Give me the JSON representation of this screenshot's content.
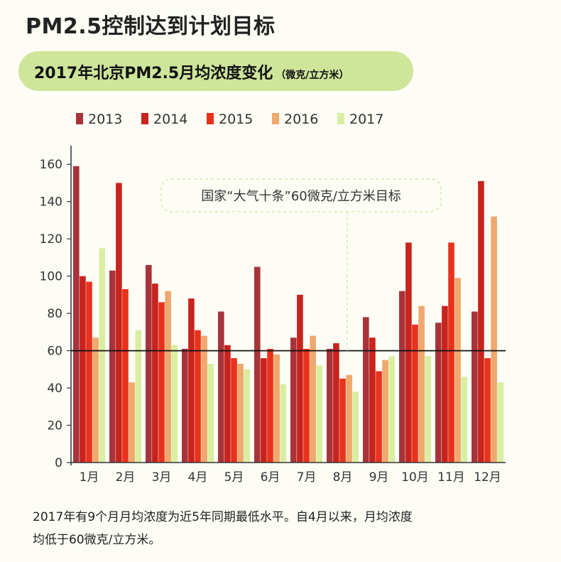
{
  "page": {
    "main_title": "PM2.5控制达到计划目标",
    "subtitle": "2017年北京PM2.5月均浓度变化",
    "subtitle_unit": "（微克/立方米）",
    "footnote_line1": "2017年有9个月月均浓度为近5年同期最低水平。自4月以来，月均浓度",
    "footnote_line2": "均低于60微克/立方米。"
  },
  "chart_data": {
    "type": "bar",
    "categories": [
      "1月",
      "2月",
      "3月",
      "4月",
      "5月",
      "6月",
      "7月",
      "8月",
      "9月",
      "10月",
      "11月",
      "12月"
    ],
    "series": [
      {
        "name": "2013",
        "color": "#a8333a",
        "values": [
          159,
          103,
          106,
          61,
          81,
          105,
          67,
          61,
          78,
          92,
          75,
          81
        ]
      },
      {
        "name": "2014",
        "color": "#c8231c",
        "values": [
          100,
          150,
          96,
          88,
          63,
          56,
          90,
          64,
          67,
          118,
          84,
          151
        ]
      },
      {
        "name": "2015",
        "color": "#e8321c",
        "values": [
          97,
          93,
          86,
          71,
          56,
          61,
          61,
          45,
          49,
          74,
          118,
          56
        ]
      },
      {
        "name": "2016",
        "color": "#f0a86e",
        "values": [
          67,
          43,
          92,
          68,
          53,
          58,
          68,
          47,
          55,
          84,
          99,
          132
        ]
      },
      {
        "name": "2017",
        "color": "#d9eea0",
        "values": [
          115,
          71,
          63,
          53,
          50,
          42,
          52,
          38,
          57,
          57,
          46,
          43
        ]
      }
    ],
    "ylim": [
      0,
      170
    ],
    "yticks": [
      0,
      20,
      40,
      60,
      80,
      100,
      120,
      140,
      160
    ],
    "reference_line": {
      "value": 60,
      "label": "国家“大气十条”60微克/立方米目标"
    },
    "legend_position": "top",
    "grid": false
  }
}
